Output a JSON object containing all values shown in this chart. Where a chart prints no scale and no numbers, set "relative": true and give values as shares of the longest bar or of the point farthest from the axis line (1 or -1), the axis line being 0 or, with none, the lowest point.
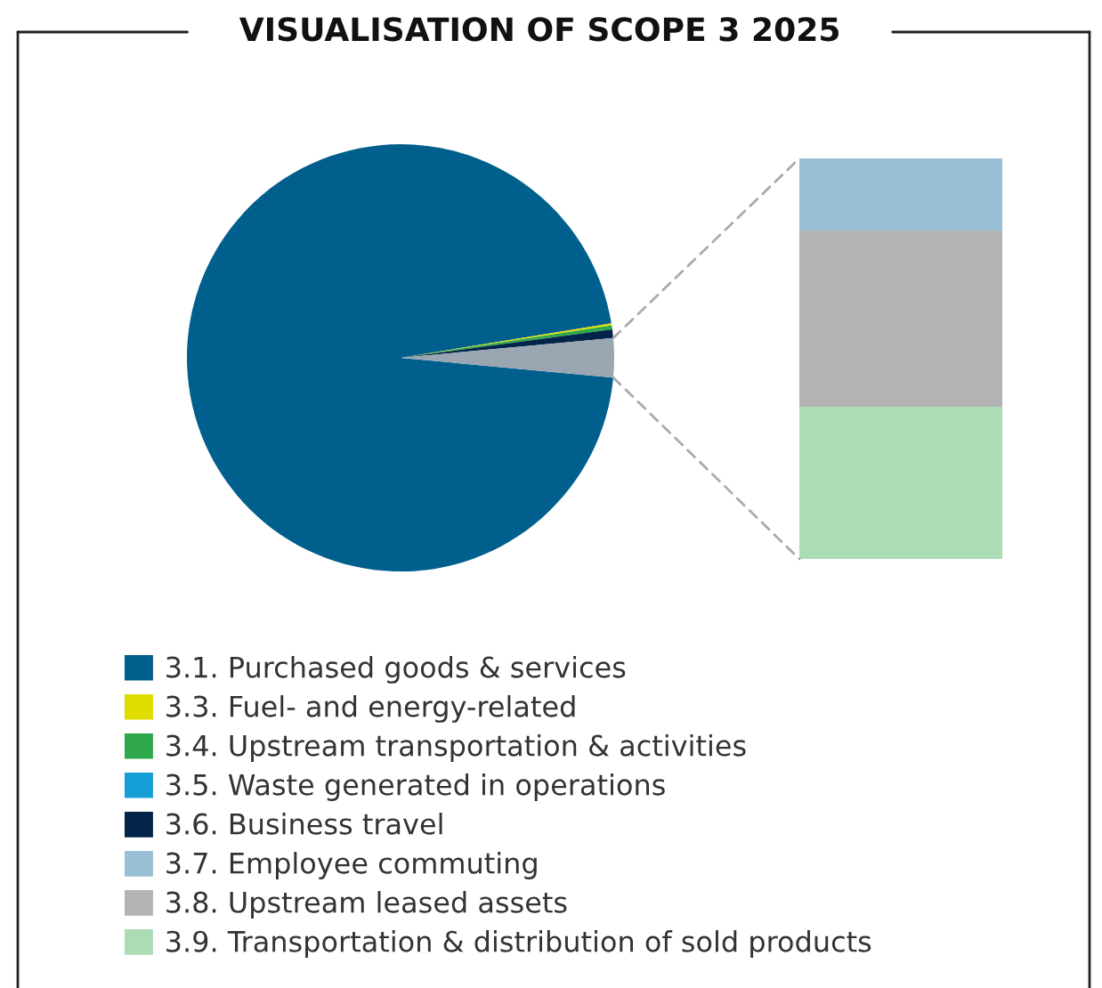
{
  "chart_data": [
    {
      "type": "pie",
      "title": "VISUALISATION OF SCOPE 3 2025",
      "legend": "bottom",
      "categories": [
        "3.1. Purchased goods & services",
        "3.3. Fuel- and energy-related",
        "3.4. Upstream transportation & activities",
        "3.5. Waste generated in operations",
        "3.6. Business travel",
        null
      ],
      "values": [
        95.95,
        0.15,
        0.3,
        null,
        0.65,
        2.95
      ],
      "colors": [
        "#005f8c",
        "#e0dc00",
        "#2ea84a",
        "#139ed6",
        "#04254a",
        "#9aa6b2"
      ]
    },
    {
      "type": "bar",
      "stacked": true,
      "relative": true,
      "legend": "bottom",
      "categories": [
        null
      ],
      "series": [
        {
          "name": "3.9. Transportation & distribution of sold products",
          "color": "#acdcb5",
          "values": [
            0.38
          ]
        },
        {
          "name": "3.8. Upstream leased assets",
          "color": "#b3b3b3",
          "values": [
            0.44
          ]
        },
        {
          "name": "3.7. Employee commuting",
          "color": "#98bfd3",
          "values": [
            0.18
          ]
        }
      ]
    }
  ]
}
